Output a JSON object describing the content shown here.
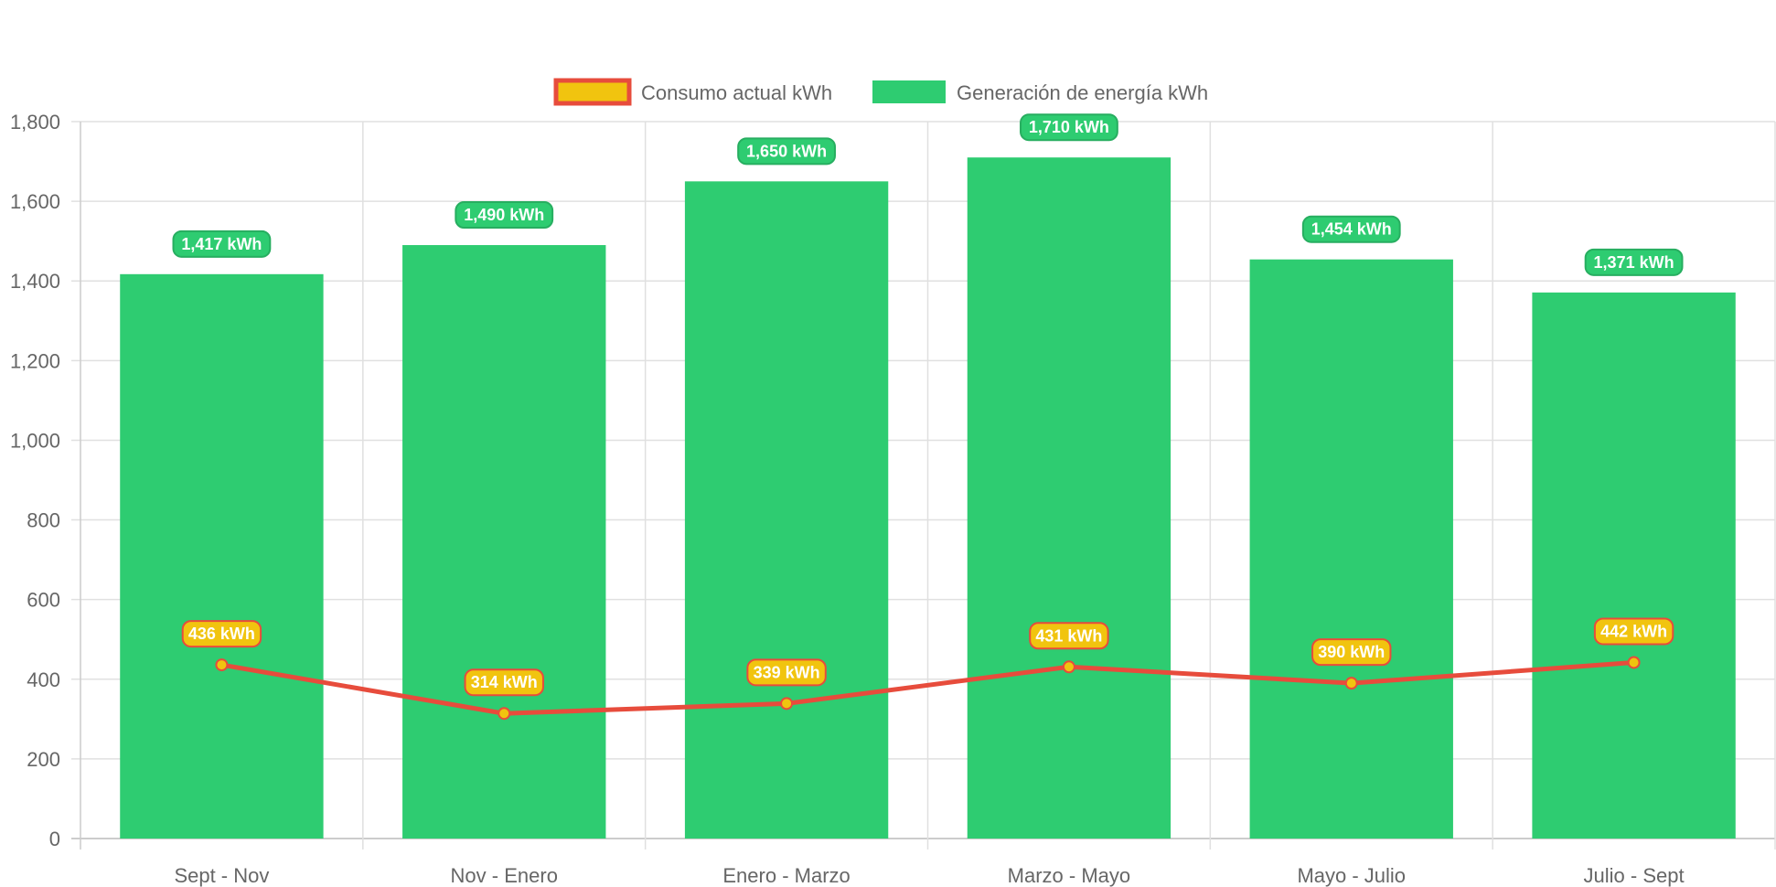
{
  "chart_data": {
    "type": "bar",
    "categories": [
      "Sept - Nov",
      "Nov - Enero",
      "Enero - Marzo",
      "Marzo - Mayo",
      "Mayo - Julio",
      "Julio - Sept"
    ],
    "series": [
      {
        "name": "Consumo actual kWh",
        "type": "line",
        "values": [
          436,
          314,
          339,
          431,
          390,
          442
        ],
        "labels": [
          "436 kWh",
          "314 kWh",
          "339 kWh",
          "431 kWh",
          "390 kWh",
          "442 kWh"
        ],
        "color": "#e74c3c",
        "point_color": "#f1c40f"
      },
      {
        "name": "Generación de energía kWh",
        "type": "bar",
        "values": [
          1417,
          1490,
          1650,
          1710,
          1454,
          1371
        ],
        "labels": [
          "1,417 kWh",
          "1,490 kWh",
          "1,650 kWh",
          "1,710 kWh",
          "1,454 kWh",
          "1,371 kWh"
        ],
        "color": "#2ecc71",
        "label_border": "#27ae60"
      }
    ],
    "yticks": [
      "0",
      "200",
      "400",
      "600",
      "800",
      "1,000",
      "1,200",
      "1,400",
      "1,600",
      "1,800"
    ],
    "ylim": [
      0,
      1800
    ],
    "grid": true,
    "legend_position": "top"
  }
}
